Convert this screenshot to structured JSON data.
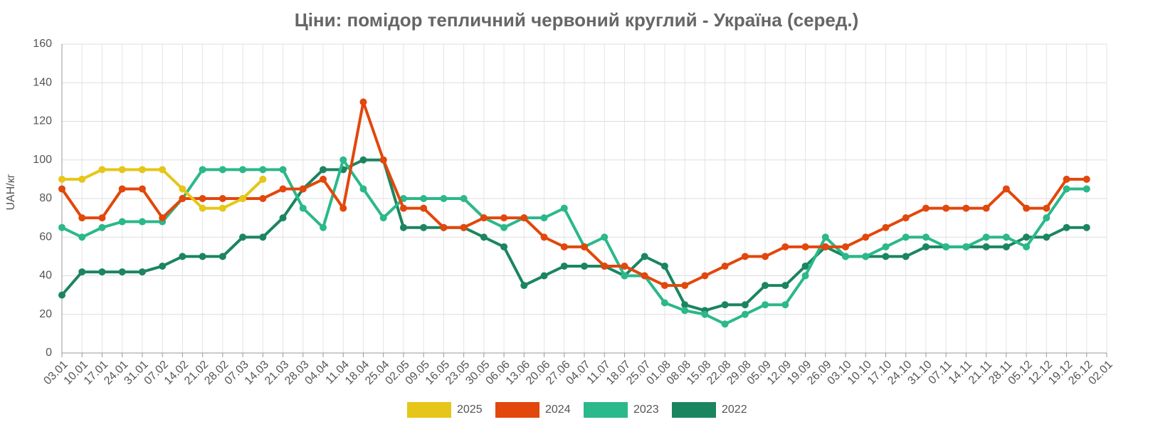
{
  "chart_data": {
    "type": "line",
    "title": "Ціни: помідор тепличний червоний круглий - Україна (серед.)",
    "y_label": "UAH/кг",
    "categories": [
      "03.01",
      "10.01",
      "17.01",
      "24.01",
      "31.01",
      "07.02",
      "14.02",
      "21.02",
      "28.02",
      "07.03",
      "14.03",
      "21.03",
      "28.03",
      "04.04",
      "11.04",
      "18.04",
      "25.04",
      "02.05",
      "09.05",
      "16.05",
      "23.05",
      "30.05",
      "06.06",
      "13.06",
      "20.06",
      "27.06",
      "04.07",
      "11.07",
      "18.07",
      "25.07",
      "01.08",
      "08.08",
      "15.08",
      "22.08",
      "29.08",
      "05.09",
      "12.09",
      "19.09",
      "26.09",
      "03.10",
      "10.10",
      "17.10",
      "24.10",
      "31.10",
      "07.11",
      "14.11",
      "21.11",
      "28.11",
      "05.12",
      "12.12",
      "19.12",
      "26.12",
      "02.01"
    ],
    "series": [
      {
        "name": "2025",
        "color": "#e6c619",
        "values": [
          90,
          90,
          95,
          95,
          95,
          95,
          85,
          75,
          75,
          80,
          90,
          null,
          null,
          null,
          null,
          null,
          null,
          null,
          null,
          null,
          null,
          null,
          null,
          null,
          null,
          null,
          null,
          null,
          null,
          null,
          null,
          null,
          null,
          null,
          null,
          null,
          null,
          null,
          null,
          null,
          null,
          null,
          null,
          null,
          null,
          null,
          null,
          null,
          null,
          null,
          null,
          null,
          null
        ]
      },
      {
        "name": "2024",
        "color": "#e2470b",
        "values": [
          85,
          70,
          70,
          85,
          85,
          70,
          80,
          80,
          80,
          80,
          80,
          85,
          85,
          90,
          75,
          130,
          100,
          75,
          75,
          65,
          65,
          70,
          70,
          70,
          60,
          55,
          55,
          45,
          45,
          40,
          35,
          35,
          40,
          45,
          50,
          50,
          55,
          55,
          55,
          55,
          60,
          65,
          70,
          75,
          75,
          75,
          75,
          85,
          75,
          75,
          90,
          90,
          null
        ]
      },
      {
        "name": "2023",
        "color": "#2bb88a",
        "values": [
          65,
          60,
          65,
          68,
          68,
          68,
          80,
          95,
          95,
          95,
          95,
          95,
          75,
          65,
          100,
          85,
          70,
          80,
          80,
          80,
          80,
          70,
          65,
          70,
          70,
          75,
          55,
          60,
          40,
          40,
          26,
          22,
          20,
          15,
          20,
          25,
          25,
          40,
          60,
          50,
          50,
          55,
          60,
          60,
          55,
          55,
          60,
          60,
          55,
          70,
          85,
          85,
          null
        ]
      },
      {
        "name": "2022",
        "color": "#1b8560",
        "values": [
          30,
          42,
          42,
          42,
          42,
          45,
          50,
          50,
          50,
          60,
          60,
          70,
          85,
          95,
          95,
          100,
          100,
          65,
          65,
          65,
          65,
          60,
          55,
          35,
          40,
          45,
          45,
          45,
          40,
          50,
          45,
          25,
          22,
          25,
          25,
          35,
          35,
          45,
          55,
          50,
          50,
          50,
          50,
          55,
          55,
          55,
          55,
          55,
          60,
          60,
          65,
          65,
          null
        ]
      }
    ],
    "ylim": [
      0,
      160
    ],
    "yticks": [
      0,
      20,
      40,
      60,
      80,
      100,
      120,
      140,
      160
    ],
    "grid": true,
    "legend": "bottom"
  }
}
